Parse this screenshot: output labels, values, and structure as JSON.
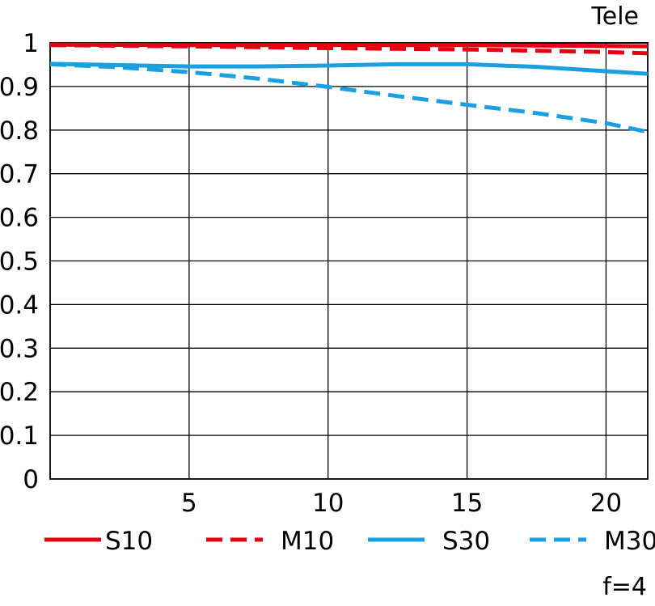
{
  "chart_data": {
    "type": "line",
    "title": "Tele",
    "footnote": "f=4",
    "xlabel": "",
    "ylabel": "",
    "xlim": [
      0,
      21.5
    ],
    "ylim": [
      0,
      1
    ],
    "x_ticks": [
      5,
      10,
      15,
      20
    ],
    "y_ticks": [
      0,
      0.1,
      0.2,
      0.3,
      0.4,
      0.5,
      0.6,
      0.7,
      0.8,
      0.9,
      1
    ],
    "y_tick_labels": [
      "0",
      "0.1",
      "0.2",
      "0.3",
      "0.4",
      "0.5",
      "0.6",
      "0.7",
      "0.8",
      "0.9",
      "1"
    ],
    "grid": true,
    "legend_position": "bottom",
    "series": [
      {
        "name": "S10",
        "color": "#e60012",
        "dash": "solid",
        "x": [
          0,
          5,
          10,
          15,
          20,
          21.5
        ],
        "y": [
          0.996,
          0.995,
          0.995,
          0.995,
          0.993,
          0.992
        ]
      },
      {
        "name": "M10",
        "color": "#e60012",
        "dash": "dashed",
        "x": [
          0,
          5,
          10,
          15,
          20,
          21.5
        ],
        "y": [
          0.995,
          0.992,
          0.988,
          0.985,
          0.979,
          0.976
        ]
      },
      {
        "name": "S30",
        "color": "#1aa0e0",
        "dash": "solid",
        "x": [
          0,
          2.5,
          5,
          7.5,
          10,
          12.5,
          15,
          17.5,
          20,
          21.5
        ],
        "y": [
          0.952,
          0.949,
          0.946,
          0.946,
          0.948,
          0.951,
          0.951,
          0.945,
          0.935,
          0.929
        ]
      },
      {
        "name": "M30",
        "color": "#1aa0e0",
        "dash": "dashed",
        "x": [
          0,
          2.5,
          5,
          7.5,
          10,
          12.5,
          15,
          17.5,
          20,
          21.5
        ],
        "y": [
          0.951,
          0.944,
          0.933,
          0.918,
          0.899,
          0.878,
          0.858,
          0.839,
          0.816,
          0.796
        ]
      }
    ]
  }
}
